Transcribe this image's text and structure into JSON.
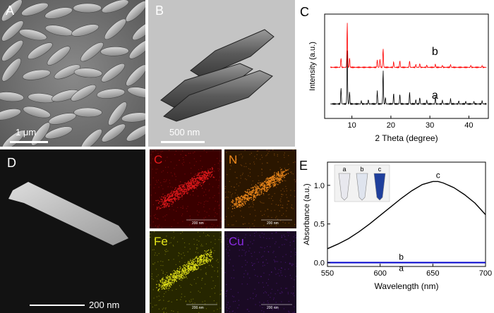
{
  "figure": {
    "panel_a": {
      "label": "A",
      "scale_text": "1 μm"
    },
    "panel_b": {
      "label": "B",
      "scale_text": "500 nm"
    },
    "panel_c": {
      "label": "C"
    },
    "panel_d": {
      "label": "D",
      "scale_text": "200 nm"
    },
    "panel_e": {
      "label": "E"
    },
    "maps": [
      {
        "label": "C",
        "color": "#e31a1c",
        "scale_text": "200 nm"
      },
      {
        "label": "N",
        "color": "#f08a1c",
        "scale_text": "200 nm"
      },
      {
        "label": "Fe",
        "color": "#e3e31a",
        "scale_text": "200 nm"
      },
      {
        "label": "Cu",
        "color": "#8a2be2",
        "scale_text": "200 nm"
      }
    ]
  },
  "chart_data": [
    {
      "type": "line",
      "xlabel": "2 Theta (degree)",
      "ylabel": "Intensity (a.u.)",
      "xlim": [
        3,
        45
      ],
      "xticks": [
        10,
        20,
        30,
        40
      ],
      "yticks_shown": false,
      "series": [
        {
          "name": "a",
          "color": "#000000",
          "peaks": [
            [
              7.2,
              0.3
            ],
            [
              8.8,
              1.0
            ],
            [
              9.4,
              0.22
            ],
            [
              12.4,
              0.06
            ],
            [
              14.2,
              0.08
            ],
            [
              16.5,
              0.24
            ],
            [
              18.0,
              0.62
            ],
            [
              18.6,
              0.12
            ],
            [
              20.7,
              0.2
            ],
            [
              22.3,
              0.18
            ],
            [
              24.8,
              0.22
            ],
            [
              26.4,
              0.08
            ],
            [
              27.4,
              0.12
            ],
            [
              29.2,
              0.07
            ],
            [
              31.4,
              0.14
            ],
            [
              33.2,
              0.07
            ],
            [
              35.3,
              0.1
            ],
            [
              37.4,
              0.06
            ],
            [
              39.2,
              0.05
            ],
            [
              41.3,
              0.05
            ],
            [
              43.4,
              0.06
            ]
          ]
        },
        {
          "name": "b",
          "color": "#ff0000",
          "peaks": [
            [
              7.2,
              0.2
            ],
            [
              8.8,
              0.95
            ],
            [
              9.4,
              0.2
            ],
            [
              16.5,
              0.16
            ],
            [
              17.2,
              0.18
            ],
            [
              18.0,
              0.4
            ],
            [
              20.7,
              0.12
            ],
            [
              22.3,
              0.14
            ],
            [
              24.8,
              0.14
            ],
            [
              26.4,
              0.06
            ],
            [
              27.4,
              0.08
            ],
            [
              29.2,
              0.05
            ],
            [
              31.4,
              0.07
            ],
            [
              33.2,
              0.04
            ],
            [
              35.3,
              0.06
            ],
            [
              40.5,
              0.04
            ],
            [
              43.4,
              0.03
            ]
          ]
        }
      ]
    },
    {
      "type": "line",
      "xlabel": "Wavelength (nm)",
      "ylabel": "Absorbance (a.u.)",
      "xlim": [
        550,
        700
      ],
      "ylim": [
        -0.05,
        1.3
      ],
      "xticks": [
        550,
        600,
        650,
        700
      ],
      "yticks": [
        0.0,
        0.5,
        1.0
      ],
      "series": [
        {
          "name": "a",
          "color": "#7030a0",
          "x": [
            550,
            575,
            600,
            625,
            650,
            675,
            700
          ],
          "y": [
            0.0,
            0.0,
            0.0,
            0.0,
            0.0,
            0.0,
            0.0
          ]
        },
        {
          "name": "b",
          "color": "#0000cc",
          "x": [
            550,
            575,
            600,
            625,
            650,
            675,
            700
          ],
          "y": [
            0.0,
            0.0,
            0.0,
            0.0,
            0.0,
            0.0,
            0.0
          ]
        },
        {
          "name": "c",
          "color": "#000000",
          "x": [
            550,
            560,
            570,
            580,
            590,
            600,
            610,
            620,
            630,
            640,
            650,
            655,
            660,
            670,
            680,
            690,
            700
          ],
          "y": [
            0.18,
            0.24,
            0.31,
            0.4,
            0.5,
            0.61,
            0.72,
            0.83,
            0.93,
            1.01,
            1.05,
            1.05,
            1.03,
            0.97,
            0.88,
            0.77,
            0.62
          ]
        }
      ],
      "inset_tube_labels": [
        "a",
        "b",
        "c"
      ]
    }
  ]
}
